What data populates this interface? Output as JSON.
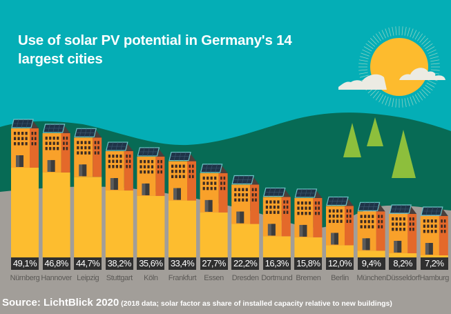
{
  "chart_data": {
    "type": "bar",
    "title": "Use of solar PV potential in Germany's 14 largest cities",
    "xlabel": "",
    "ylabel": "",
    "unit": "%",
    "categories": [
      "Nürnberg",
      "Hannover",
      "Leipzig",
      "Stuttgart",
      "Köln",
      "Frankfurt",
      "Essen",
      "Dresden",
      "Dortmund",
      "Bremen",
      "Berlin",
      "München",
      "Düsseldorf",
      "Hamburg"
    ],
    "values": [
      49.1,
      46.8,
      44.7,
      38.2,
      35.6,
      33.4,
      27.7,
      22.2,
      16.3,
      15.8,
      12.0,
      9.4,
      8.2,
      7.2
    ],
    "value_labels": [
      "49,1%",
      "46,8%",
      "44,7%",
      "38,2%",
      "35,6%",
      "33,4%",
      "27,7%",
      "22,2%",
      "16,3%",
      "15,8%",
      "12,0%",
      "9,4%",
      "8,2%",
      "7,2%"
    ],
    "ylim": [
      0,
      50
    ],
    "grid": false,
    "legend": "none"
  },
  "title_lines": [
    "Use of solar PV potential in Germany's 14",
    "largest cities"
  ],
  "footer": {
    "source": "Source: LichtBlick 2020",
    "note": " (2018 data; solar factor as share of installed capacity relative to new buildings)"
  },
  "colors": {
    "sky": "#04aeb6",
    "hill": "#076b55",
    "ground": "#a29e99",
    "bar": "#fdbd2f",
    "building_front": "#f9a12a",
    "building_side": "#e4692a",
    "panel": "#1f3347",
    "panel_frame": "#6fc5c9",
    "sun": "#fdbb2e",
    "cloud": "#ecebe3",
    "tree": "#8dbf3c",
    "label_box": "#2f2f2f"
  }
}
